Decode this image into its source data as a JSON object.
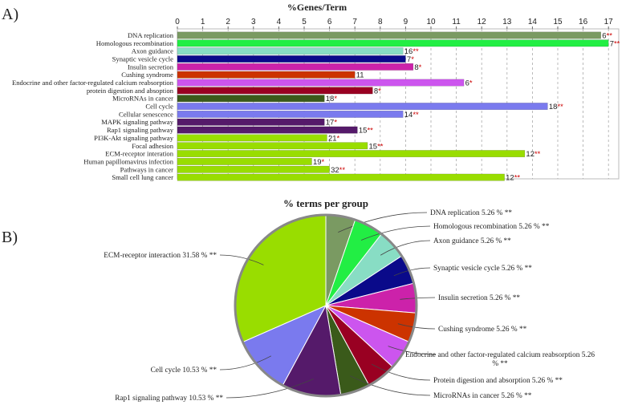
{
  "panel_a_label": "A)",
  "panel_b_label": "B)",
  "chart_data": [
    {
      "type": "bar",
      "orientation": "horizontal",
      "title": "%Genes/Term",
      "xlim": [
        0,
        17.5
      ],
      "xticks": [
        "0",
        "1",
        "2",
        "3",
        "4",
        "5",
        "6",
        "7",
        "8",
        "9",
        "10",
        "11",
        "12",
        "13",
        "14",
        "15",
        "16",
        "17"
      ],
      "bars": [
        {
          "term": "DNA replication",
          "value": 16.7,
          "count": "6",
          "sig": "**",
          "color": "#7a9a62"
        },
        {
          "term": "Homologous recombination",
          "value": 17.0,
          "count": "7",
          "sig": "**",
          "color": "#22ee44"
        },
        {
          "term": "Axon guidance",
          "value": 8.9,
          "count": "16",
          "sig": "**",
          "color": "#88ddc4"
        },
        {
          "term": "Synaptic vesicle cycle",
          "value": 9.0,
          "count": "7",
          "sig": "*",
          "color": "#0a0a8a"
        },
        {
          "term": "Insulin secretion",
          "value": 9.3,
          "count": "8",
          "sig": "*",
          "color": "#cc22aa"
        },
        {
          "term": "Cushing syndrome",
          "value": 7.0,
          "count": "11",
          "sig": "",
          "color": "#cc3300"
        },
        {
          "term": "Endocrine and other factor-regulated calcium reabsorption",
          "value": 11.3,
          "count": "6",
          "sig": "*",
          "color": "#cc55ee"
        },
        {
          "term": "protein digestion and absoption",
          "value": 7.7,
          "count": "8",
          "sig": "*",
          "color": "#990022"
        },
        {
          "term": "MicroRNAs in cancer",
          "value": 5.8,
          "count": "18",
          "sig": "*",
          "color": "#3a5a1a"
        },
        {
          "term": "Cell cycle",
          "value": 14.6,
          "count": "18",
          "sig": "**",
          "color": "#7a7aee"
        },
        {
          "term": "Cellular senescence",
          "value": 8.9,
          "count": "14",
          "sig": "**",
          "color": "#7a7aee"
        },
        {
          "term": "MAPK signaling pathway",
          "value": 5.8,
          "count": "17",
          "sig": "*",
          "color": "#551a6a"
        },
        {
          "term": "Rap1 signaling pathway",
          "value": 7.1,
          "count": "15",
          "sig": "**",
          "color": "#551a6a"
        },
        {
          "term": "PI3K-Akt signaling pathway",
          "value": 5.9,
          "count": "21",
          "sig": "*",
          "color": "#99dd00"
        },
        {
          "term": "Focal adhesion",
          "value": 7.5,
          "count": "15",
          "sig": "**",
          "color": "#99dd00"
        },
        {
          "term": "ECM-receptor interation",
          "value": 13.7,
          "count": "12",
          "sig": "**",
          "color": "#99dd00"
        },
        {
          "term": "Human papillomavirus infection",
          "value": 5.3,
          "count": "19",
          "sig": "*",
          "color": "#99dd00"
        },
        {
          "term": "Pathways in cancer",
          "value": 6.0,
          "count": "32",
          "sig": "**",
          "color": "#99dd00"
        },
        {
          "term": "Small cell lung cancer",
          "value": 12.9,
          "count": "12",
          "sig": "**",
          "color": "#99dd00"
        }
      ]
    },
    {
      "type": "pie",
      "title": "% terms per group",
      "slices": [
        {
          "label": "DNA replication 5.26 % **",
          "value": 5.26,
          "color": "#7a9a62"
        },
        {
          "label": "Homologous recombination 5.26 % **",
          "value": 5.26,
          "color": "#22ee44"
        },
        {
          "label": "Axon guidance 5.26 % **",
          "value": 5.26,
          "color": "#88ddc4"
        },
        {
          "label": "Synaptic vesicle cycle 5.26 % **",
          "value": 5.26,
          "color": "#0a0a8a"
        },
        {
          "label": "Insulin secretion 5.26 % **",
          "value": 5.26,
          "color": "#cc22aa"
        },
        {
          "label": "Cushing syndrome 5.26 % **",
          "value": 5.26,
          "color": "#cc3300"
        },
        {
          "label": "Endocrine and other factor-regulated calcium reabsorption 5.26 % **",
          "value": 5.26,
          "color": "#cc55ee"
        },
        {
          "label": "Protein digestion and absorption 5.26 % **",
          "value": 5.26,
          "color": "#990022"
        },
        {
          "label": "MicroRNAs in cancer 5.26 % **",
          "value": 5.26,
          "color": "#3a5a1a"
        },
        {
          "label": "Rap1 signaling pathway 10.53 % **",
          "value": 10.53,
          "color": "#551a6a"
        },
        {
          "label": "Cell cycle 10.53 % **",
          "value": 10.53,
          "color": "#7a7aee"
        },
        {
          "label": "ECM-receptor interaction 31.58 % **",
          "value": 31.58,
          "color": "#99dd00"
        }
      ]
    }
  ]
}
